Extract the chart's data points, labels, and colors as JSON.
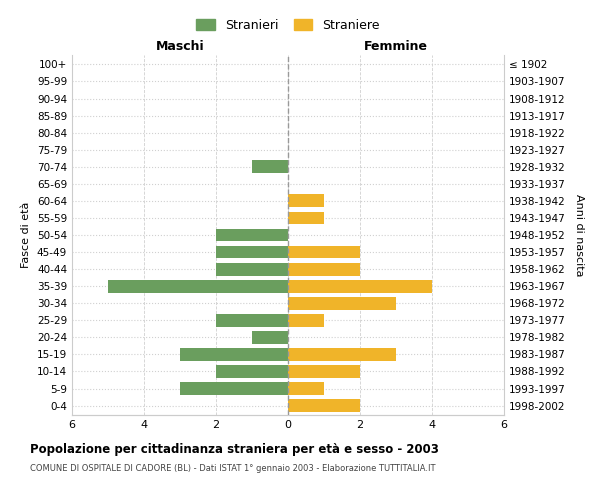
{
  "age_groups": [
    "0-4",
    "5-9",
    "10-14",
    "15-19",
    "20-24",
    "25-29",
    "30-34",
    "35-39",
    "40-44",
    "45-49",
    "50-54",
    "55-59",
    "60-64",
    "65-69",
    "70-74",
    "75-79",
    "80-84",
    "85-89",
    "90-94",
    "95-99",
    "100+"
  ],
  "birth_years": [
    "1998-2002",
    "1993-1997",
    "1988-1992",
    "1983-1987",
    "1978-1982",
    "1973-1977",
    "1968-1972",
    "1963-1967",
    "1958-1962",
    "1953-1957",
    "1948-1952",
    "1943-1947",
    "1938-1942",
    "1933-1937",
    "1928-1932",
    "1923-1927",
    "1918-1922",
    "1913-1917",
    "1908-1912",
    "1903-1907",
    "≤ 1902"
  ],
  "males": [
    0,
    3,
    2,
    3,
    1,
    2,
    0,
    5,
    2,
    2,
    2,
    0,
    0,
    0,
    1,
    0,
    0,
    0,
    0,
    0,
    0
  ],
  "females": [
    2,
    1,
    2,
    3,
    0,
    1,
    3,
    4,
    2,
    2,
    0,
    1,
    1,
    0,
    0,
    0,
    0,
    0,
    0,
    0,
    0
  ],
  "male_color": "#6a9e5e",
  "female_color": "#f0b429",
  "title": "Popolazione per cittadinanza straniera per età e sesso - 2003",
  "subtitle": "COMUNE DI OSPITALE DI CADORE (BL) - Dati ISTAT 1° gennaio 2003 - Elaborazione TUTTITALIA.IT",
  "xlabel_left": "Maschi",
  "xlabel_right": "Femmine",
  "ylabel_left": "Fasce di età",
  "ylabel_right": "Anni di nascita",
  "legend_male": "Stranieri",
  "legend_female": "Straniere",
  "xlim": 6,
  "background_color": "#ffffff",
  "grid_color": "#d0d0d0",
  "bar_height": 0.75
}
